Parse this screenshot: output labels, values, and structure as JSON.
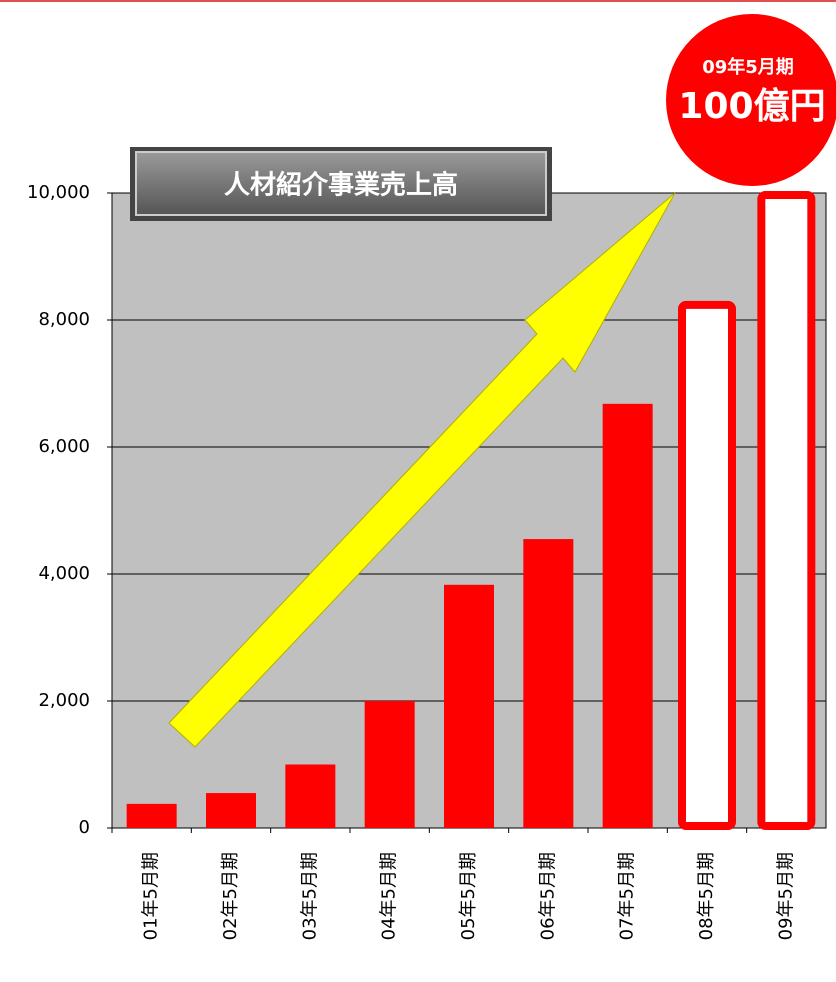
{
  "chart_data": {
    "type": "bar",
    "title": "人材紹介事業売上高",
    "annotation": {
      "period": "09年5月期",
      "amount": "100億円"
    },
    "categories": [
      "01年5月期",
      "02年5月期",
      "03年5月期",
      "04年5月期",
      "05年5月期",
      "06年5月期",
      "07年5月期",
      "08年5月期",
      "09年5月期"
    ],
    "series": [
      {
        "color": "#ff0000",
        "values": [
          380,
          550,
          1000,
          2000,
          3830,
          4550,
          6680,
          null,
          null
        ]
      },
      {
        "color": "#ffffff",
        "edgecolor": "#ff0000",
        "values": [
          null,
          null,
          null,
          null,
          null,
          null,
          null,
          8270,
          10000
        ]
      }
    ],
    "ylim": [
      0,
      10000
    ],
    "yticks": [
      0,
      {
        "value": 2000,
        "label": "2,000"
      },
      {
        "value": 4000,
        "label": "4,000"
      },
      {
        "value": 6000,
        "label": "6,000"
      },
      {
        "value": 8000,
        "label": "8,000"
      },
      {
        "value": 10000,
        "label": "10,000"
      }
    ],
    "grid": true
  }
}
